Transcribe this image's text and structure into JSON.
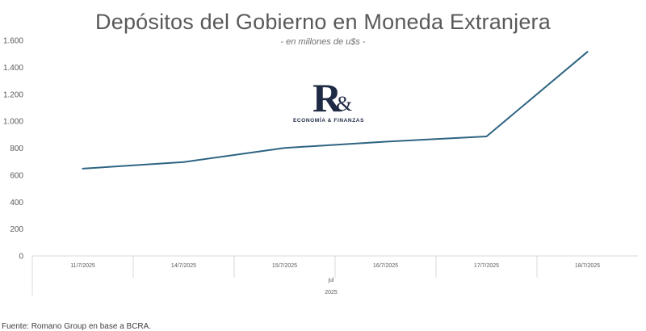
{
  "chart_data": {
    "type": "line",
    "title": "Depósitos del Gobierno en Moneda Extranjera",
    "subtitle": "- en millones de u$s -",
    "categories": [
      "11/7/2025",
      "14/7/2025",
      "15/7/2025",
      "16/7/2025",
      "17/7/2025",
      "18/7/2025"
    ],
    "series": [
      {
        "values": [
          648,
          697,
          802,
          848,
          887,
          1515
        ]
      }
    ],
    "month_label": "jul",
    "year_label": "2025",
    "ylim": [
      0,
      1600
    ],
    "yticks": [
      0,
      200,
      400,
      600,
      800,
      1000,
      1200,
      1400,
      1600
    ],
    "ytick_labels": [
      "0",
      "200",
      "400",
      "600",
      "800",
      "1.000",
      "1.200",
      "1.400",
      "1.600"
    ],
    "grid": false,
    "legend": "none",
    "colors": {
      "line": "#2e6482",
      "axis": "#d9d9d9",
      "text": "#595959"
    }
  },
  "logo": {
    "mark": "R",
    "amp": "&",
    "text": "ECONOMÍA & FINANZAS"
  },
  "source": "Fuente: Romano Group en base a BCRA."
}
